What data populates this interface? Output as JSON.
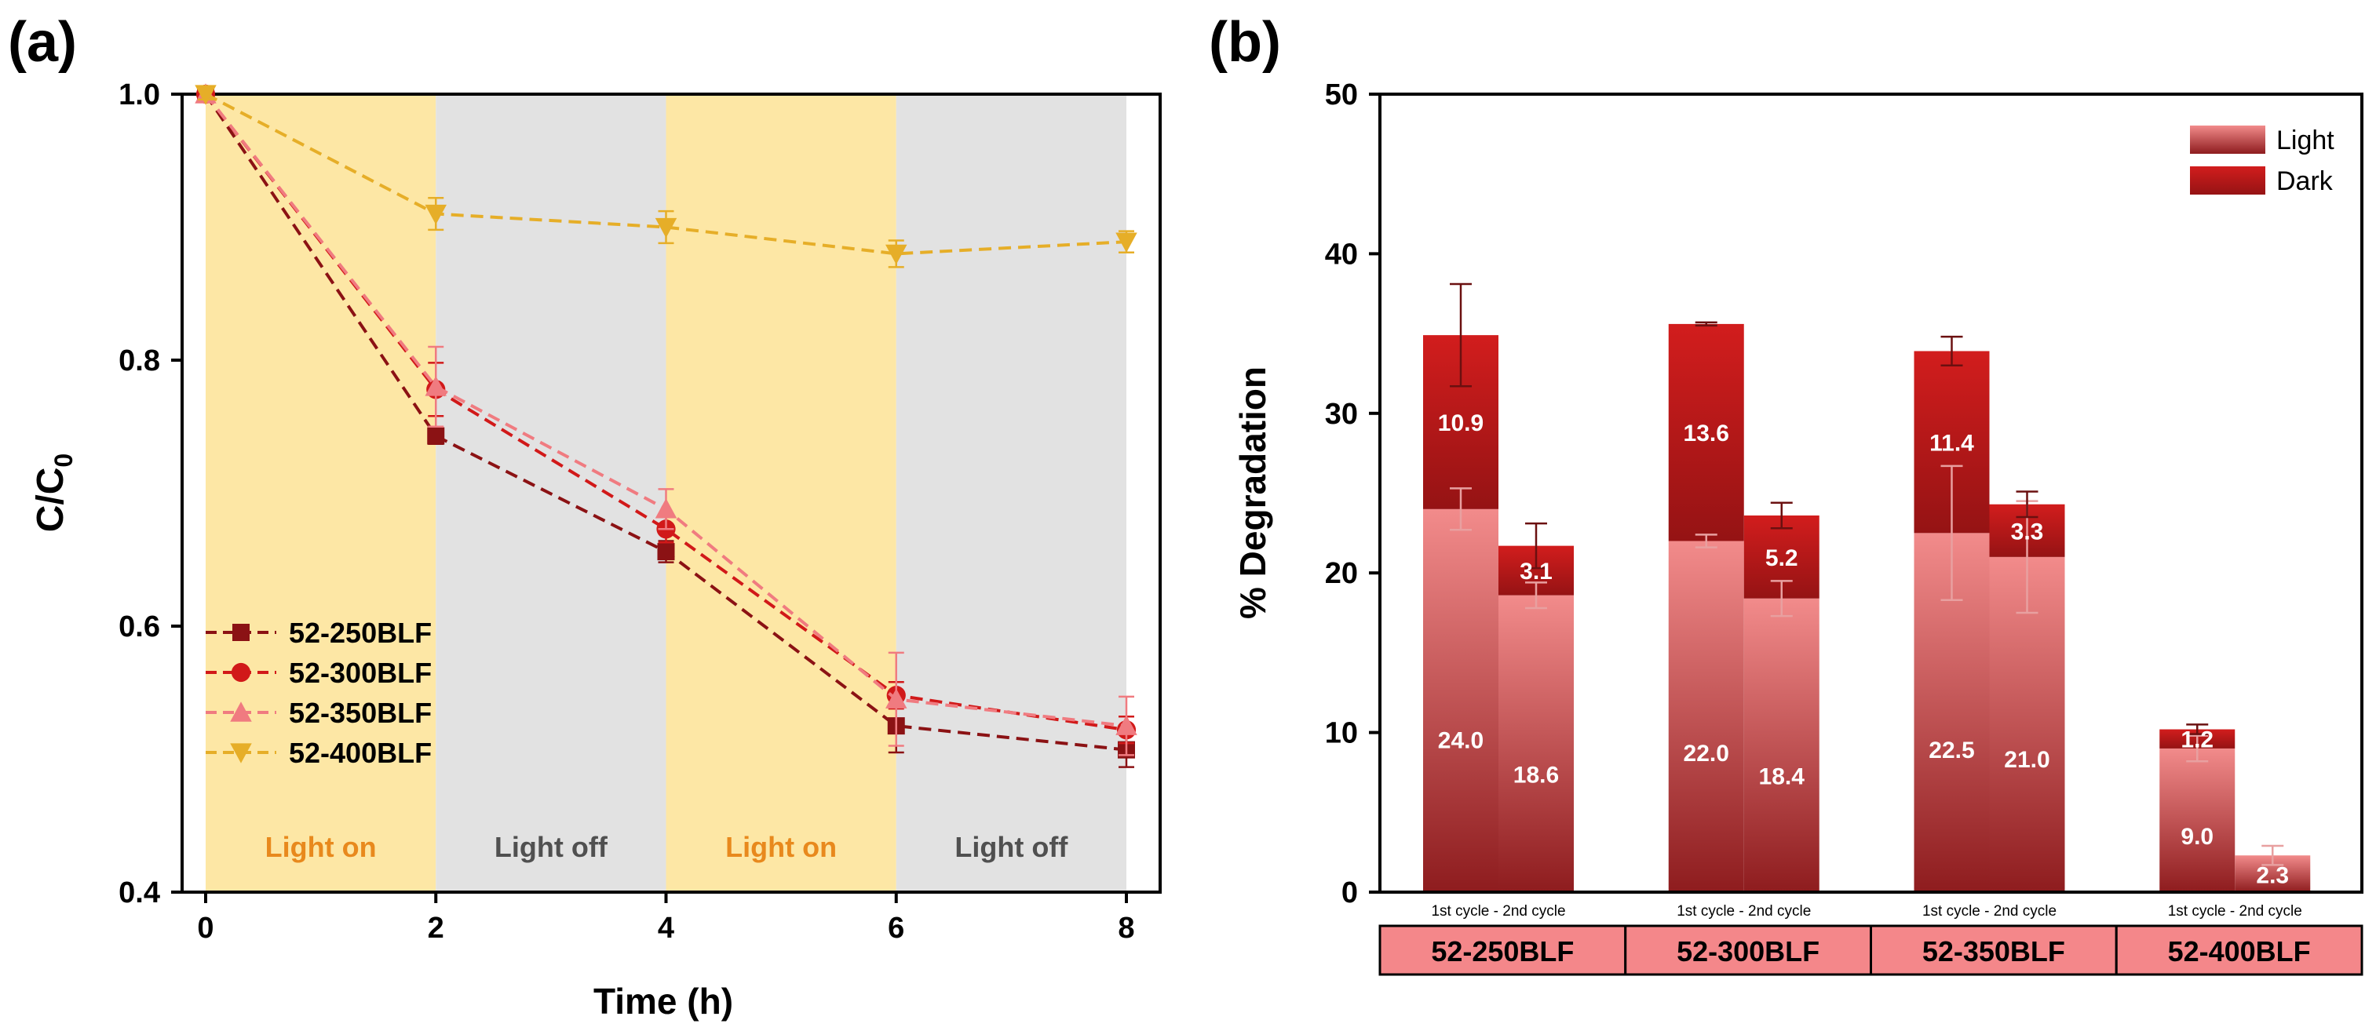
{
  "chart_data": [
    {
      "panel_label": "(a)",
      "type": "line",
      "xlabel": "Time (h)",
      "ylabel_main": "C/C",
      "ylabel_sub": "0",
      "xlim": [
        0,
        8
      ],
      "ylim": [
        0.4,
        1.0
      ],
      "xticks": [
        "0",
        "2",
        "4",
        "6",
        "8"
      ],
      "xtick_values": [
        0,
        2,
        4,
        6,
        8
      ],
      "yticks": [
        "0.4",
        "0.6",
        "0.8",
        "1.0"
      ],
      "ytick_values": [
        0.4,
        0.6,
        0.8,
        1.0
      ],
      "x": [
        0,
        2,
        4,
        6,
        8
      ],
      "regions": [
        {
          "start": 0,
          "end": 2,
          "label": "Light on",
          "fill": "#fde7a5",
          "text_color": "#e8891d"
        },
        {
          "start": 2,
          "end": 4,
          "label": "Light off",
          "fill": "#e2e2e2",
          "text_color": "#505050"
        },
        {
          "start": 4,
          "end": 6,
          "label": "Light on",
          "fill": "#fde7a5",
          "text_color": "#e8891d"
        },
        {
          "start": 6,
          "end": 8,
          "label": "Light off",
          "fill": "#e2e2e2",
          "text_color": "#505050"
        }
      ],
      "series": [
        {
          "name": "52-250BLF",
          "marker": "square",
          "color": "#8b1214",
          "values": [
            1.0,
            0.743,
            0.656,
            0.525,
            0.507
          ],
          "errors": [
            0.004,
            0.006,
            0.008,
            0.02,
            0.013
          ]
        },
        {
          "name": "52-300BLF",
          "marker": "circle",
          "color": "#d11919",
          "values": [
            1.0,
            0.778,
            0.673,
            0.548,
            0.522
          ],
          "errors": [
            0.004,
            0.02,
            0.01,
            0.01,
            0.01
          ]
        },
        {
          "name": "52-350BLF",
          "marker": "triangle-up",
          "color": "#f07b80",
          "values": [
            1.0,
            0.78,
            0.688,
            0.545,
            0.525
          ],
          "errors": [
            0.004,
            0.03,
            0.015,
            0.035,
            0.022
          ]
        },
        {
          "name": "52-400BLF",
          "marker": "triangle-down",
          "color": "#e6ae28",
          "values": [
            1.0,
            0.91,
            0.9,
            0.88,
            0.889
          ],
          "errors": [
            0.004,
            0.012,
            0.012,
            0.01,
            0.008
          ]
        }
      ],
      "legend_location": "lower-left"
    },
    {
      "panel_label": "(b)",
      "type": "bar",
      "stacked": true,
      "ylabel": "% Degradation",
      "ylim": [
        0,
        50
      ],
      "yticks": [
        "0",
        "10",
        "20",
        "30",
        "40",
        "50"
      ],
      "ytick_values": [
        0,
        10,
        20,
        30,
        40,
        50
      ],
      "cycle_caption": "1st cycle - 2nd cycle",
      "categories": [
        "52-250BLF",
        "52-300BLF",
        "52-350BLF",
        "52-400BLF"
      ],
      "legend": [
        {
          "label": "Light",
          "color": "#f28b8b"
        },
        {
          "label": "Dark",
          "color": "#c51d1d"
        }
      ],
      "legend_location": "top-right",
      "category_fill": "#f4878a",
      "bars": [
        {
          "category": "52-250BLF",
          "cycle": "1st",
          "light": 24.0,
          "dark": 10.9,
          "light_label": "24.0",
          "dark_label": "10.9",
          "light_err": 1.3,
          "total_err": 3.2
        },
        {
          "category": "52-250BLF",
          "cycle": "2nd",
          "light": 18.6,
          "dark": 3.1,
          "light_label": "18.6",
          "dark_label": "3.1",
          "light_err": 0.8,
          "total_err": 1.4
        },
        {
          "category": "52-300BLF",
          "cycle": "1st",
          "light": 22.0,
          "dark": 13.6,
          "light_label": "22.0",
          "dark_label": "13.6",
          "light_err": 0.4,
          "total_err": 0.1
        },
        {
          "category": "52-300BLF",
          "cycle": "2nd",
          "light": 18.4,
          "dark": 5.2,
          "light_label": "18.4",
          "dark_label": "5.2",
          "light_err": 1.1,
          "total_err": 0.8
        },
        {
          "category": "52-350BLF",
          "cycle": "1st",
          "light": 22.5,
          "dark": 11.4,
          "light_label": "22.5",
          "dark_label": "11.4",
          "light_err": 4.2,
          "total_err": 0.9
        },
        {
          "category": "52-350BLF",
          "cycle": "2nd",
          "light": 21.0,
          "dark": 3.3,
          "light_label": "21.0",
          "dark_label": "3.3",
          "light_err": 3.5,
          "total_err": 0.8
        },
        {
          "category": "52-400BLF",
          "cycle": "1st",
          "light": 9.0,
          "dark": 1.2,
          "light_label": "9.0",
          "dark_label": "1.2",
          "light_err": 0.8,
          "total_err": 0.3
        },
        {
          "category": "52-400BLF",
          "cycle": "2nd",
          "light": 2.3,
          "dark": 0.0,
          "light_label": "2.3",
          "dark_label": "",
          "light_err": 0.6,
          "total_err": 0.0
        }
      ]
    }
  ]
}
